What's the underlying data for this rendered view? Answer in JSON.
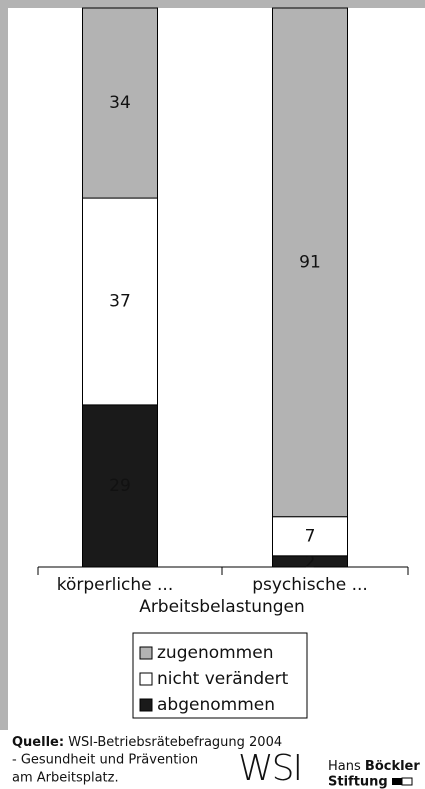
{
  "chart_data": {
    "type": "stacked_bar",
    "categories": [
      "körperliche ...",
      "psychische ..."
    ],
    "x_label": "Arbeitsbelastungen",
    "series": [
      {
        "name": "zugenommen",
        "color": "#b3b3b3",
        "values": [
          34,
          91
        ]
      },
      {
        "name": "nicht verändert",
        "color": "#ffffff",
        "values": [
          37,
          7
        ]
      },
      {
        "name": "abgenommen",
        "color": "#1a1a1a",
        "values": [
          29,
          2
        ]
      }
    ],
    "ylim": [
      0,
      100
    ],
    "source_label": "Quelle:",
    "source_lines": [
      "WSI-Betriebsrätebefragung 2004",
      "- Gesundheit und Prävention",
      "am Arbeitsplatz."
    ],
    "logo": "WSI",
    "foundation": [
      "Hans",
      "Böckler",
      "Stiftung"
    ]
  }
}
